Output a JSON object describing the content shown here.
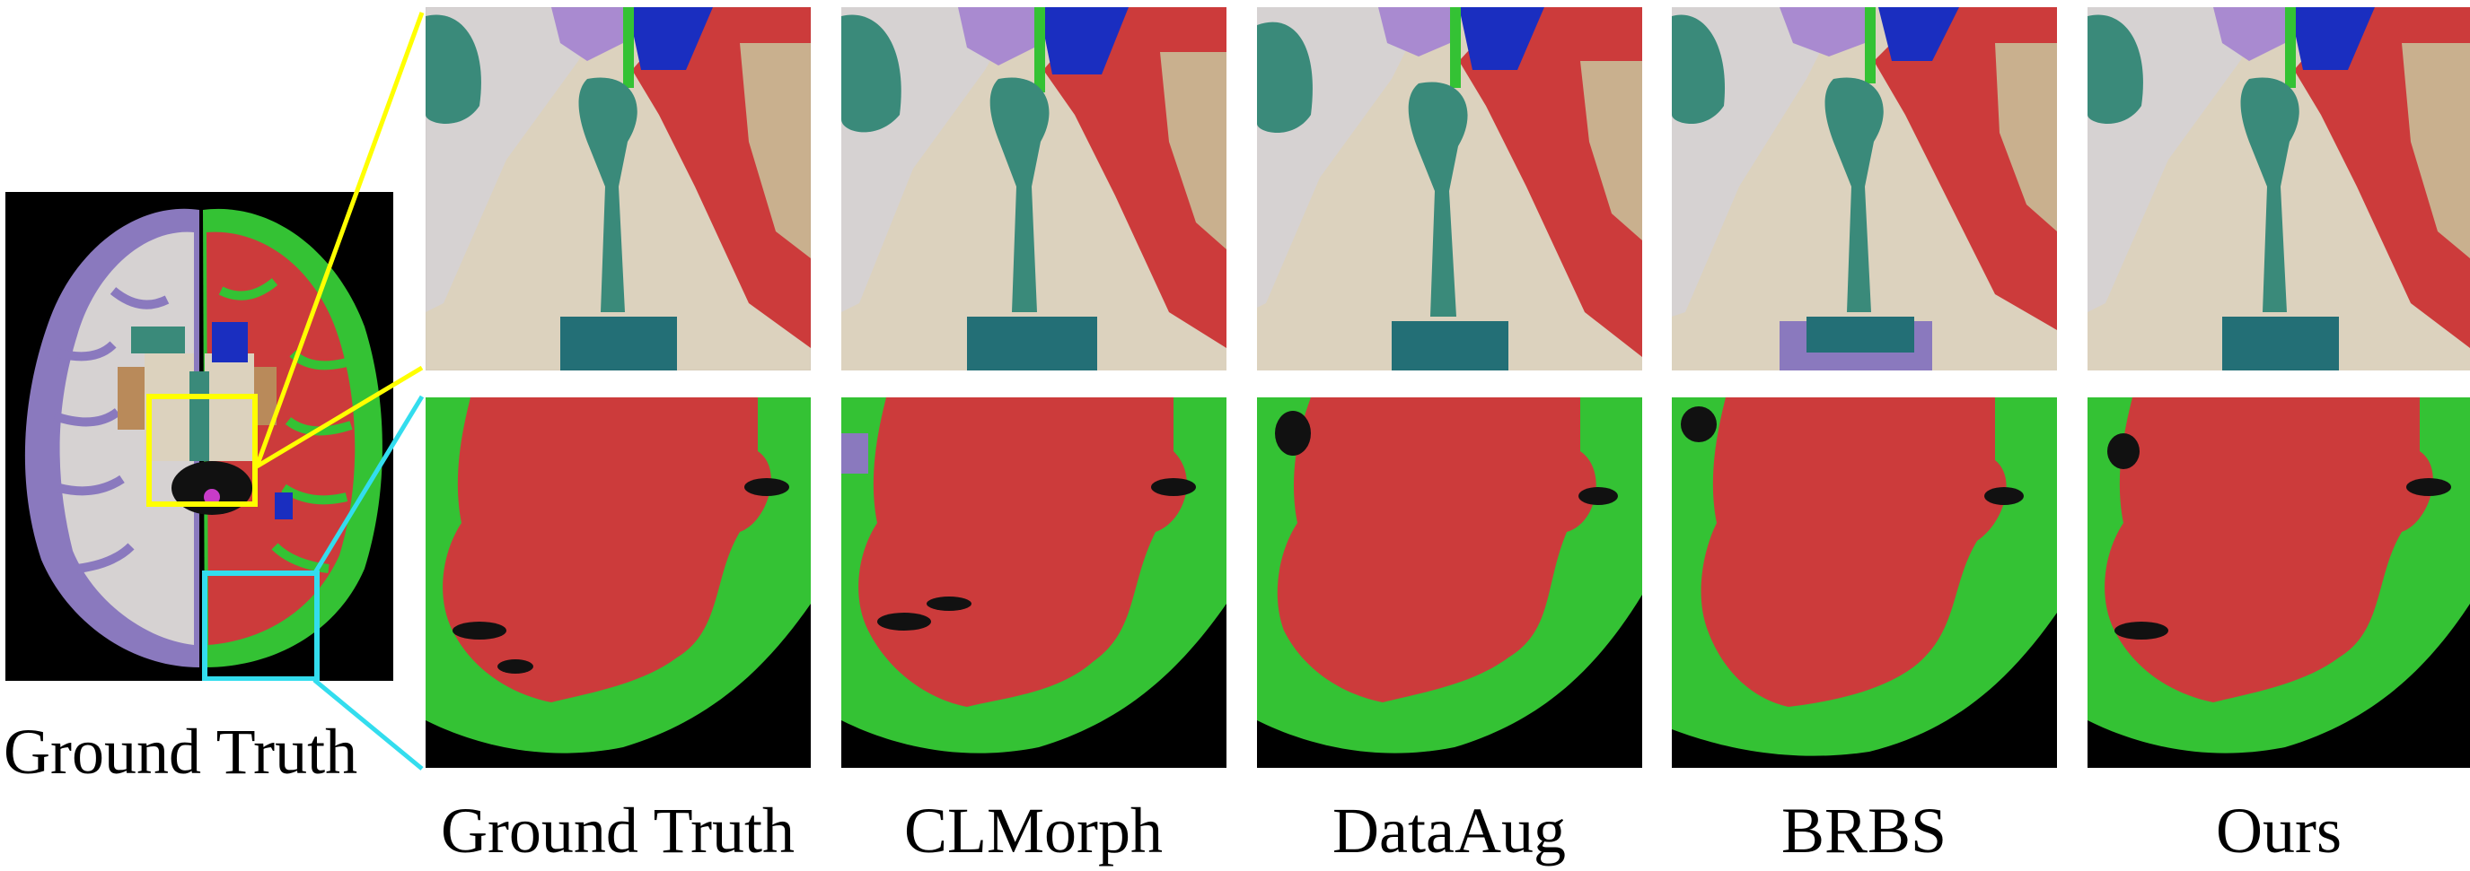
{
  "figure": {
    "overview_caption": "Ground Truth",
    "columns": [
      {
        "id": "gt",
        "label": "Ground Truth"
      },
      {
        "id": "clmorph",
        "label": "CLMorph"
      },
      {
        "id": "dataaug",
        "label": "DataAug"
      },
      {
        "id": "brbs",
        "label": "BRBS"
      },
      {
        "id": "ours",
        "label": "Ours"
      }
    ],
    "rows": [
      {
        "id": "zoom-center",
        "highlight_color": "#ffff00"
      },
      {
        "id": "zoom-cortex",
        "highlight_color": "#33ddee"
      }
    ],
    "segmentation_colors": {
      "white_matter": "#cc3b3b",
      "gray_matter": "#34c234",
      "ventricle": "#3a8a7a",
      "ventricle_dark": "#236f76",
      "caudate": "#1a2ec0",
      "thalamus": "#dcd2be",
      "pallidum": "#b98a5a",
      "left_white": "#d6d2d2",
      "left_cortex": "#8a79be",
      "background": "#000000"
    }
  }
}
